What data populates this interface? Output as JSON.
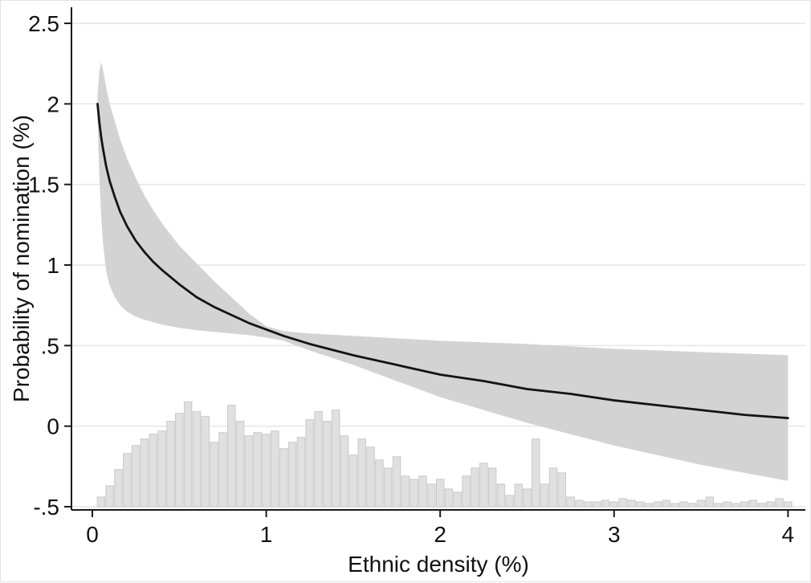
{
  "figure": {
    "xlabel": "Ethnic density (%)",
    "ylabel": "Probability of nomination (%)"
  },
  "chart_data": {
    "type": "line",
    "title": "",
    "xlabel": "Ethnic density (%)",
    "ylabel": "Probability of nomination (%)",
    "xlim": [
      -0.12,
      4.1
    ],
    "ylim": [
      -0.52,
      2.6
    ],
    "xticks": [
      0,
      1,
      2,
      3,
      4
    ],
    "xtick_labels": [
      "0",
      "1",
      "2",
      "3",
      "4"
    ],
    "yticks": [
      2.5,
      2,
      1.5,
      1,
      0.5,
      0,
      -0.5
    ],
    "ytick_labels": [
      "2.5",
      "2",
      "1.5",
      "1",
      ".5",
      "0",
      "-.5"
    ],
    "grid": "horizontal",
    "legend": "none",
    "colors": {
      "line": "#141414",
      "band": "#d3d3d3",
      "histogram": "#e0e0e0",
      "gridline": "#e7e7e7"
    },
    "series": [
      {
        "name": "confidence-band",
        "type": "band",
        "color": "#d3d3d3",
        "x": [
          0.03,
          0.04,
          0.05,
          0.06,
          0.08,
          0.1,
          0.13,
          0.16,
          0.2,
          0.25,
          0.3,
          0.35,
          0.4,
          0.5,
          0.6,
          0.7,
          0.8,
          0.9,
          1.0,
          1.1,
          1.25,
          1.5,
          1.75,
          2.0,
          2.25,
          2.5,
          2.75,
          3.0,
          3.25,
          3.5,
          3.75,
          4.0
        ],
        "upper": [
          2.05,
          2.2,
          2.26,
          2.22,
          2.1,
          2.0,
          1.89,
          1.78,
          1.66,
          1.54,
          1.43,
          1.34,
          1.26,
          1.12,
          1.01,
          0.9,
          0.8,
          0.7,
          0.62,
          0.59,
          0.575,
          0.56,
          0.545,
          0.53,
          0.52,
          0.51,
          0.495,
          0.48,
          0.47,
          0.46,
          0.45,
          0.44
        ],
        "lower": [
          1.9,
          1.55,
          1.32,
          1.15,
          0.96,
          0.87,
          0.8,
          0.75,
          0.71,
          0.68,
          0.66,
          0.645,
          0.63,
          0.61,
          0.595,
          0.585,
          0.575,
          0.565,
          0.55,
          0.53,
          0.47,
          0.38,
          0.28,
          0.18,
          0.1,
          0.02,
          -0.05,
          -0.12,
          -0.18,
          -0.24,
          -0.29,
          -0.34
        ]
      },
      {
        "name": "predicted-probability",
        "type": "line",
        "color": "#141414",
        "x": [
          0.03,
          0.04,
          0.05,
          0.06,
          0.08,
          0.1,
          0.13,
          0.16,
          0.2,
          0.25,
          0.3,
          0.35,
          0.4,
          0.5,
          0.6,
          0.7,
          0.8,
          0.9,
          1.0,
          1.1,
          1.25,
          1.5,
          1.75,
          2.0,
          2.25,
          2.5,
          2.75,
          3.0,
          3.25,
          3.5,
          3.75,
          4.0
        ],
        "y": [
          2.0,
          1.89,
          1.8,
          1.73,
          1.61,
          1.52,
          1.42,
          1.33,
          1.24,
          1.15,
          1.08,
          1.02,
          0.97,
          0.88,
          0.8,
          0.74,
          0.69,
          0.64,
          0.6,
          0.56,
          0.51,
          0.44,
          0.38,
          0.32,
          0.28,
          0.23,
          0.2,
          0.16,
          0.13,
          0.1,
          0.07,
          0.05
        ]
      },
      {
        "name": "ethnic-density-histogram",
        "type": "histogram",
        "color": "#e0e0e0",
        "baseline": -0.5,
        "bin_width": 0.05,
        "x": [
          0.05,
          0.1,
          0.15,
          0.2,
          0.25,
          0.3,
          0.35,
          0.4,
          0.45,
          0.5,
          0.55,
          0.6,
          0.65,
          0.7,
          0.75,
          0.8,
          0.85,
          0.9,
          0.95,
          1.0,
          1.05,
          1.1,
          1.15,
          1.2,
          1.25,
          1.3,
          1.35,
          1.4,
          1.45,
          1.5,
          1.55,
          1.6,
          1.65,
          1.7,
          1.75,
          1.8,
          1.85,
          1.9,
          1.95,
          2.0,
          2.05,
          2.1,
          2.15,
          2.2,
          2.25,
          2.3,
          2.35,
          2.4,
          2.45,
          2.5,
          2.55,
          2.6,
          2.65,
          2.7,
          2.75,
          2.8,
          2.85,
          2.9,
          2.95,
          3.0,
          3.05,
          3.1,
          3.15,
          3.2,
          3.25,
          3.3,
          3.35,
          3.4,
          3.45,
          3.5,
          3.55,
          3.6,
          3.65,
          3.7,
          3.75,
          3.8,
          3.85,
          3.9,
          3.95,
          4.0
        ],
        "top": [
          -0.44,
          -0.37,
          -0.27,
          -0.17,
          -0.12,
          -0.08,
          -0.05,
          -0.03,
          0.03,
          0.08,
          0.15,
          0.09,
          0.06,
          -0.1,
          -0.04,
          0.13,
          0.03,
          -0.06,
          -0.04,
          -0.05,
          -0.03,
          -0.14,
          -0.1,
          -0.07,
          0.04,
          0.09,
          0.03,
          0.1,
          -0.06,
          -0.18,
          -0.08,
          -0.13,
          -0.21,
          -0.26,
          -0.19,
          -0.31,
          -0.33,
          -0.31,
          -0.36,
          -0.33,
          -0.39,
          -0.41,
          -0.31,
          -0.26,
          -0.23,
          -0.26,
          -0.36,
          -0.43,
          -0.36,
          -0.39,
          -0.08,
          -0.36,
          -0.26,
          -0.29,
          -0.44,
          -0.46,
          -0.47,
          -0.47,
          -0.46,
          -0.47,
          -0.45,
          -0.46,
          -0.47,
          -0.48,
          -0.47,
          -0.46,
          -0.48,
          -0.47,
          -0.48,
          -0.46,
          -0.44,
          -0.48,
          -0.47,
          -0.48,
          -0.47,
          -0.46,
          -0.48,
          -0.47,
          -0.45,
          -0.47
        ]
      }
    ]
  }
}
